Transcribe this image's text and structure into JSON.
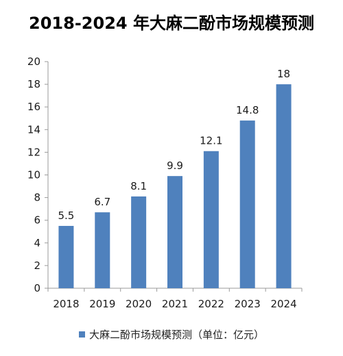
{
  "chart_data": {
    "type": "bar",
    "title": "2018-2024 年大麻二酚市场规模预测",
    "categories": [
      "2018",
      "2019",
      "2020",
      "2021",
      "2022",
      "2023",
      "2024"
    ],
    "series": [
      {
        "name": "大麻二酚市场规模预测（单位：亿元）",
        "values": [
          5.5,
          6.7,
          8.1,
          9.9,
          12.1,
          14.8,
          18
        ],
        "data_labels": [
          "5.5",
          "6.7",
          "8.1",
          "9.9",
          "12.1",
          "14.8",
          "18"
        ]
      }
    ],
    "ylim": [
      0,
      20
    ],
    "yticks": [
      "0",
      "2",
      "4",
      "6",
      "8",
      "10",
      "12",
      "14",
      "16",
      "18",
      "20"
    ],
    "grid": false,
    "legend_position": "bottom",
    "colors": {
      "bar": "#4f81bd",
      "axis": "#9a9a9a"
    }
  }
}
